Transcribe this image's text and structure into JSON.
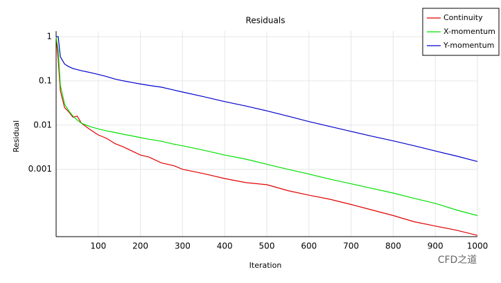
{
  "chart_data": {
    "type": "line",
    "title": "Residuals",
    "x_label": "Iteration",
    "y_label": "Residual",
    "log_y": true,
    "grid": true,
    "legend": "top-right",
    "x": [
      0,
      5,
      10,
      20,
      30,
      40,
      50,
      60,
      80,
      100,
      120,
      140,
      160,
      180,
      200,
      220,
      250,
      280,
      300,
      350,
      400,
      450,
      500,
      550,
      600,
      650,
      700,
      750,
      800,
      850,
      900,
      950,
      1000
    ],
    "series": [
      {
        "name": "Continuity",
        "color": "#e00000",
        "values": [
          1,
          0.3,
          0.06,
          0.025,
          0.02,
          0.015,
          0.016,
          0.011,
          0.008,
          0.006,
          0.005,
          0.0038,
          0.0032,
          0.0026,
          0.0021,
          0.0019,
          0.0014,
          0.0012,
          0.001,
          0.0008,
          0.00062,
          0.0005,
          0.00045,
          0.00033,
          0.00026,
          0.00021,
          0.00016,
          0.00012,
          9e-05,
          6.5e-05,
          5.2e-05,
          4.2e-05,
          3.2e-05
        ]
      },
      {
        "name": "X-momentum",
        "color": "#00e000",
        "values": [
          1,
          0.5,
          0.08,
          0.03,
          0.021,
          0.016,
          0.013,
          0.011,
          0.0093,
          0.0082,
          0.0074,
          0.0068,
          0.0062,
          0.0057,
          0.0052,
          0.0048,
          0.0043,
          0.0037,
          0.0034,
          0.0027,
          0.0021,
          0.0017,
          0.0013,
          0.001,
          0.00078,
          0.0006,
          0.00047,
          0.00037,
          0.00029,
          0.00022,
          0.00017,
          0.00012,
          9e-05
        ]
      },
      {
        "name": "Y-momentum",
        "color": "#0000cc",
        "values": [
          1,
          1,
          0.35,
          0.24,
          0.21,
          0.19,
          0.18,
          0.17,
          0.155,
          0.14,
          0.125,
          0.11,
          0.1,
          0.092,
          0.085,
          0.079,
          0.072,
          0.062,
          0.056,
          0.044,
          0.034,
          0.027,
          0.021,
          0.016,
          0.012,
          0.0093,
          0.0072,
          0.0056,
          0.0044,
          0.0034,
          0.0026,
          0.002,
          0.0015
        ]
      }
    ],
    "xlim": [
      0,
      1000
    ],
    "xticks": [
      100,
      200,
      300,
      400,
      500,
      600,
      700,
      800,
      900,
      1000
    ],
    "ylim": [
      3e-05,
      1
    ],
    "yticks": [
      1,
      0.1,
      0.01,
      0.001
    ],
    "watermark": "CFD之道"
  }
}
